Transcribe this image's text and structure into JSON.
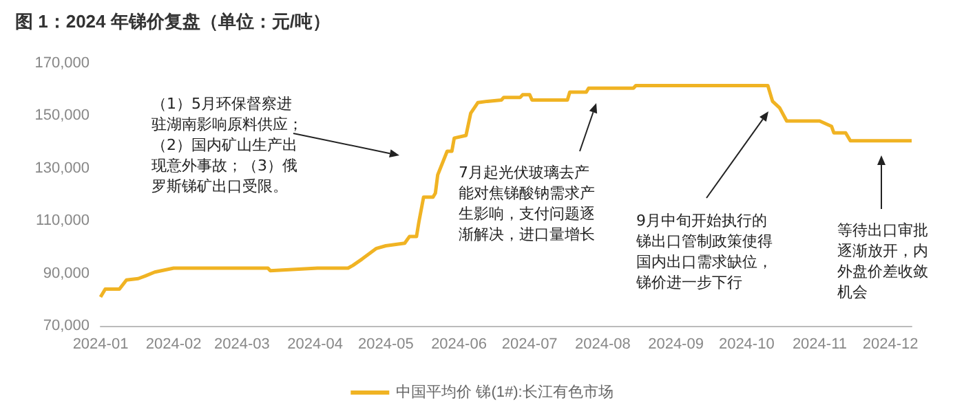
{
  "chart_data": {
    "type": "line",
    "title": "图 1：2024 年锑价复盘（单位：元/吨）",
    "x": [
      "2024-01-01",
      "2024-01-03",
      "2024-01-09",
      "2024-01-12",
      "2024-01-17",
      "2024-01-20",
      "2024-01-24",
      "2024-02-01",
      "2024-03-12",
      "2024-03-13",
      "2024-04-02",
      "2024-04-15",
      "2024-04-17",
      "2024-04-21",
      "2024-04-27",
      "2024-05-01",
      "2024-05-09",
      "2024-05-11",
      "2024-05-14",
      "2024-05-15",
      "2024-05-17",
      "2024-05-21",
      "2024-05-22",
      "2024-05-23",
      "2024-05-27",
      "2024-05-29",
      "2024-05-30",
      "2024-06-04",
      "2024-06-06",
      "2024-06-09",
      "2024-06-13",
      "2024-06-19",
      "2024-06-20",
      "2024-06-27",
      "2024-06-28",
      "2024-07-01",
      "2024-07-02",
      "2024-07-17",
      "2024-07-18",
      "2024-07-25",
      "2024-07-26",
      "2024-08-14",
      "2024-08-15",
      "2024-10-10",
      "2024-10-12",
      "2024-10-15",
      "2024-10-18",
      "2024-11-01",
      "2024-11-06",
      "2024-11-07",
      "2024-11-12",
      "2024-11-14",
      "2024-12-10"
    ],
    "series": [
      {
        "name": "中国平均价 锑(1#):长江有色市场",
        "color": "#f0b323",
        "values": [
          81000,
          84000,
          84000,
          87500,
          88000,
          89000,
          90500,
          92000,
          92000,
          91000,
          92000,
          92000,
          93000,
          95500,
          99500,
          100500,
          101500,
          104000,
          104000,
          109500,
          119000,
          119000,
          120500,
          127500,
          136500,
          136500,
          141500,
          142500,
          151000,
          155000,
          155500,
          156000,
          157000,
          157000,
          158000,
          158000,
          156000,
          156000,
          159000,
          159000,
          160500,
          160500,
          161500,
          161500,
          155500,
          153000,
          148000,
          148000,
          146000,
          143500,
          143500,
          140500,
          140500
        ]
      }
    ],
    "xlim": [
      "2024-01-01",
      "2024-12-10"
    ],
    "xticks": [
      "2024-01",
      "2024-02",
      "2024-03",
      "2024-04",
      "2024-05",
      "2024-06",
      "2024-07",
      "2024-08",
      "2024-09",
      "2024-10",
      "2024-11",
      "2024-12"
    ],
    "ylim": [
      70000,
      170000
    ],
    "yticks": [
      {
        "value": 70000,
        "label": "70,000"
      },
      {
        "value": 90000,
        "label": "90,000"
      },
      {
        "value": 110000,
        "label": "110,000"
      },
      {
        "value": 130000,
        "label": "130,000"
      },
      {
        "value": 150000,
        "label": "150,000"
      },
      {
        "value": 170000,
        "label": "170,000"
      }
    ],
    "grid": false,
    "legend": "bottom",
    "marker": "none",
    "line_style": "solid",
    "annotations": [
      "（1）5月环保督察进驻湖南影响原料供应；（2）国内矿山生产出现意外事故；（3）俄罗斯锑矿出口受限。",
      "7月起光伏玻璃去产能对焦锑酸钠需求产生影响，支付问题逐渐解决，进口量增长",
      "9月中旬开始执行的锑出口管制政策使得国内出口需求缺位，锑价进一步下行",
      "等待出口审批逐渐放开，内外盘价差收敛机会"
    ]
  }
}
